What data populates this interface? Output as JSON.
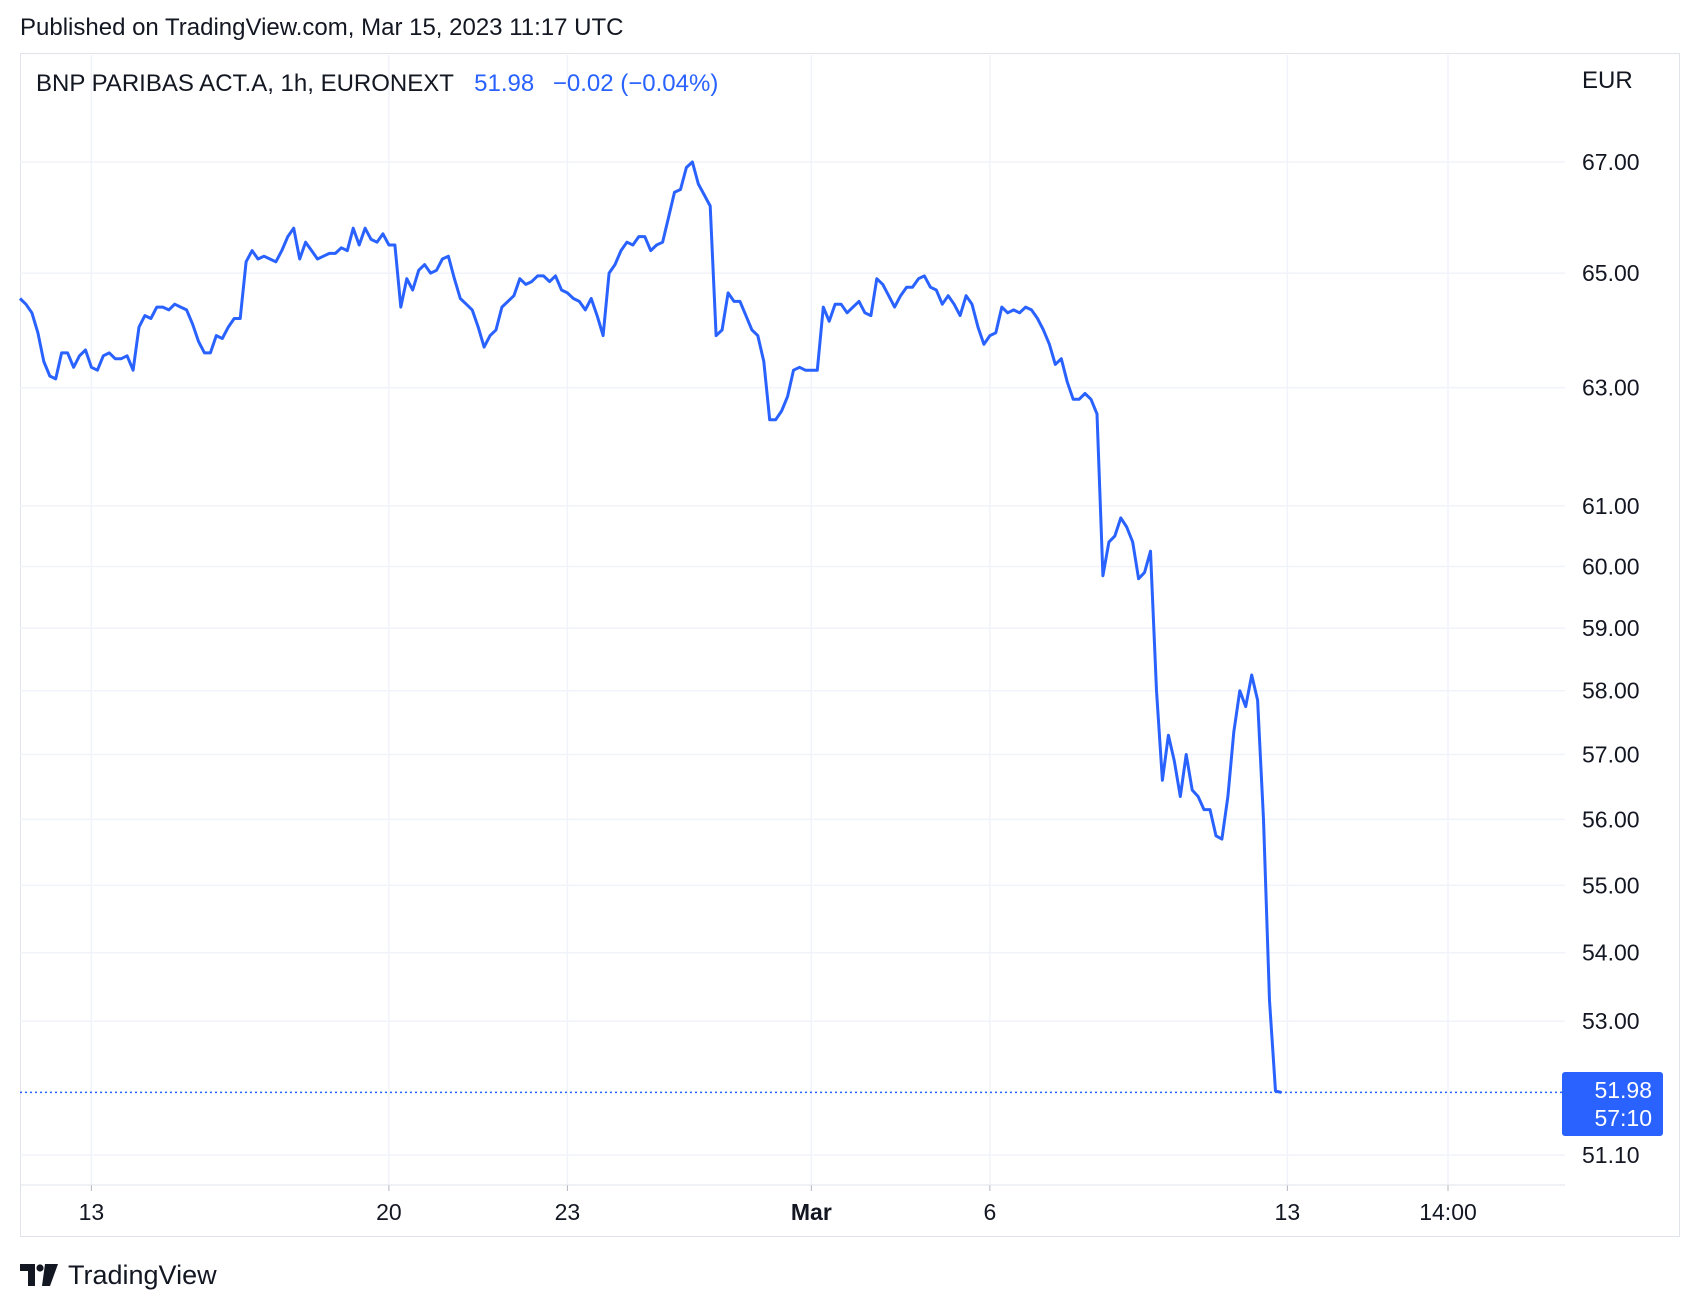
{
  "header": {
    "published": "Published on TradingView.com, Mar 15, 2023 11:17 UTC"
  },
  "legend": {
    "symbol": "BNP PARIBAS ACT.A, 1h, EURONEXT",
    "last": "51.98",
    "change": "−0.02 (−0.04%)"
  },
  "axis": {
    "currency": "EUR"
  },
  "price_tag": {
    "price": "51.98",
    "countdown": "57:10"
  },
  "brand": {
    "name": "TradingView",
    "logo_icon": "tradingview-logo-icon"
  },
  "colors": {
    "line": "#2962ff",
    "grid": "#f0f3fa",
    "text": "#131722",
    "border": "#e0e3eb"
  },
  "chart_data": {
    "type": "line",
    "title": "BNP PARIBAS ACT.A, 1h, EURONEXT",
    "ylabel": "EUR",
    "ylim": [
      50.9,
      68.5
    ],
    "y_scale": "log",
    "grid": true,
    "y_ticks": [
      67.0,
      65.0,
      63.0,
      61.0,
      60.0,
      59.0,
      58.0,
      57.0,
      56.0,
      55.0,
      54.0,
      53.0,
      51.1
    ],
    "y_tick_labels": [
      "67.00",
      "65.00",
      "63.00",
      "61.00",
      "60.00",
      "59.00",
      "58.00",
      "57.00",
      "56.00",
      "55.00",
      "54.00",
      "53.00",
      "51.10"
    ],
    "x_ticks": [
      {
        "label": "13",
        "index": 12,
        "bold": false
      },
      {
        "label": "20",
        "index": 62,
        "bold": false
      },
      {
        "label": "23",
        "index": 92,
        "bold": false
      },
      {
        "label": "Mar",
        "index": 133,
        "bold": true
      },
      {
        "label": "6",
        "index": 163,
        "bold": false
      },
      {
        "label": "13",
        "index": 213,
        "bold": false
      },
      {
        "label": "14:00",
        "index": 240,
        "bold": false
      }
    ],
    "series": [
      {
        "values": [
          64.55,
          64.45,
          64.3,
          63.95,
          63.45,
          63.2,
          63.15,
          63.6,
          63.6,
          63.35,
          63.55,
          63.65,
          63.35,
          63.3,
          63.55,
          63.6,
          63.5,
          63.5,
          63.55,
          63.3,
          64.05,
          64.25,
          64.2,
          64.4,
          64.4,
          64.35,
          64.45,
          64.4,
          64.35,
          64.1,
          63.8,
          63.6,
          63.6,
          63.9,
          63.85,
          64.05,
          64.2,
          64.2,
          65.2,
          65.4,
          65.25,
          65.3,
          65.25,
          65.2,
          65.4,
          65.65,
          65.8,
          65.25,
          65.55,
          65.4,
          65.25,
          65.3,
          65.35,
          65.35,
          65.45,
          65.4,
          65.8,
          65.5,
          65.8,
          65.6,
          65.55,
          65.7,
          65.5,
          65.5,
          64.4,
          64.9,
          64.7,
          65.05,
          65.15,
          65.0,
          65.05,
          65.25,
          65.3,
          64.9,
          64.55,
          64.45,
          64.35,
          64.05,
          63.7,
          63.9,
          64.0,
          64.4,
          64.5,
          64.6,
          64.9,
          64.8,
          64.85,
          64.95,
          64.95,
          64.85,
          64.95,
          64.7,
          64.65,
          64.55,
          64.5,
          64.35,
          64.55,
          64.25,
          63.9,
          65.0,
          65.15,
          65.4,
          65.55,
          65.5,
          65.65,
          65.65,
          65.4,
          65.5,
          65.55,
          66.0,
          66.45,
          66.5,
          66.9,
          67.0,
          66.6,
          66.4,
          66.2,
          63.9,
          64.0,
          64.65,
          64.5,
          64.5,
          64.25,
          64.0,
          63.9,
          63.45,
          62.45,
          62.45,
          62.6,
          62.85,
          63.3,
          63.35,
          63.3,
          63.3,
          63.3,
          64.4,
          64.15,
          64.45,
          64.45,
          64.3,
          64.4,
          64.5,
          64.3,
          64.25,
          64.9,
          64.8,
          64.6,
          64.4,
          64.6,
          64.75,
          64.75,
          64.9,
          64.95,
          64.75,
          64.7,
          64.45,
          64.6,
          64.45,
          64.25,
          64.6,
          64.45,
          64.05,
          63.75,
          63.9,
          63.95,
          64.4,
          64.3,
          64.35,
          64.3,
          64.4,
          64.35,
          64.2,
          64.0,
          63.75,
          63.4,
          63.5,
          63.1,
          62.8,
          62.8,
          62.9,
          62.8,
          62.55,
          59.85,
          60.4,
          60.5,
          60.8,
          60.65,
          60.4,
          59.8,
          59.9,
          60.25,
          58.0,
          56.6,
          57.3,
          56.9,
          56.35,
          57.0,
          56.45,
          56.35,
          56.15,
          56.15,
          55.75,
          55.7,
          56.35,
          57.35,
          58.0,
          57.75,
          58.25,
          57.85,
          56.0,
          53.3,
          52.0,
          51.98
        ]
      }
    ]
  }
}
